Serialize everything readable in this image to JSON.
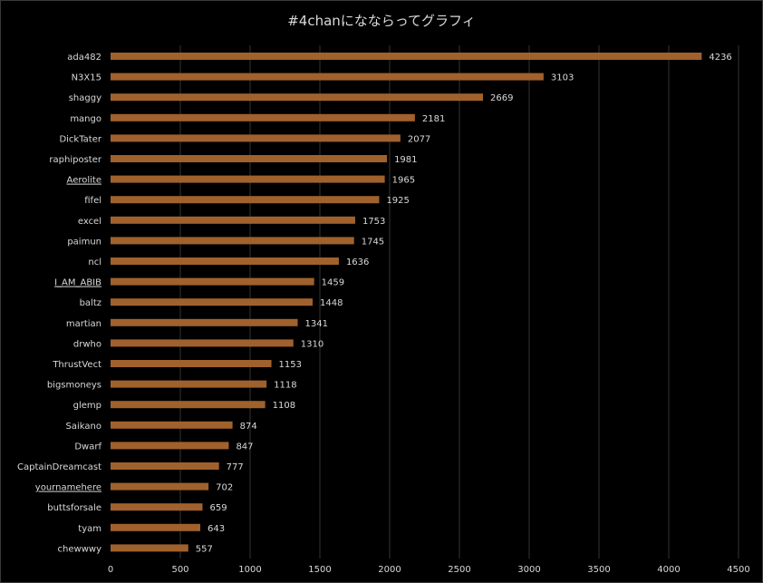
{
  "chart_data": {
    "type": "bar",
    "orientation": "horizontal",
    "title": "#4chanになならってグラフィ",
    "categories": [
      "ada482",
      "N3X15",
      "shaggy",
      "mango",
      "DickTater",
      "raphiposter",
      "Aerolite",
      "fifel",
      "excel",
      "paimun",
      "ncl",
      "I_AM_ABIB",
      "baltz",
      "martian",
      "drwho",
      "ThrustVect",
      "bigsmoneys",
      "glemp",
      "Saikano",
      "Dwarf",
      "CaptainDreamcast",
      "yournamehere",
      "buttsforsale",
      "tyam",
      "chewwwy"
    ],
    "underlined": [
      "Aerolite",
      "I_AM_ABIB",
      "yournamehere"
    ],
    "values": [
      4236,
      3103,
      2669,
      2181,
      2077,
      1981,
      1965,
      1925,
      1753,
      1745,
      1636,
      1459,
      1448,
      1341,
      1310,
      1153,
      1118,
      1108,
      874,
      847,
      777,
      702,
      659,
      643,
      557
    ],
    "xlim": [
      0,
      4500
    ],
    "xticks": [
      0,
      500,
      1000,
      1500,
      2000,
      2500,
      3000,
      3500,
      4000,
      4500
    ],
    "grid": true,
    "colors": {
      "bar": "#a0612d",
      "background": "#000000",
      "grid": "#333333",
      "text": "#d9d9d9"
    }
  }
}
